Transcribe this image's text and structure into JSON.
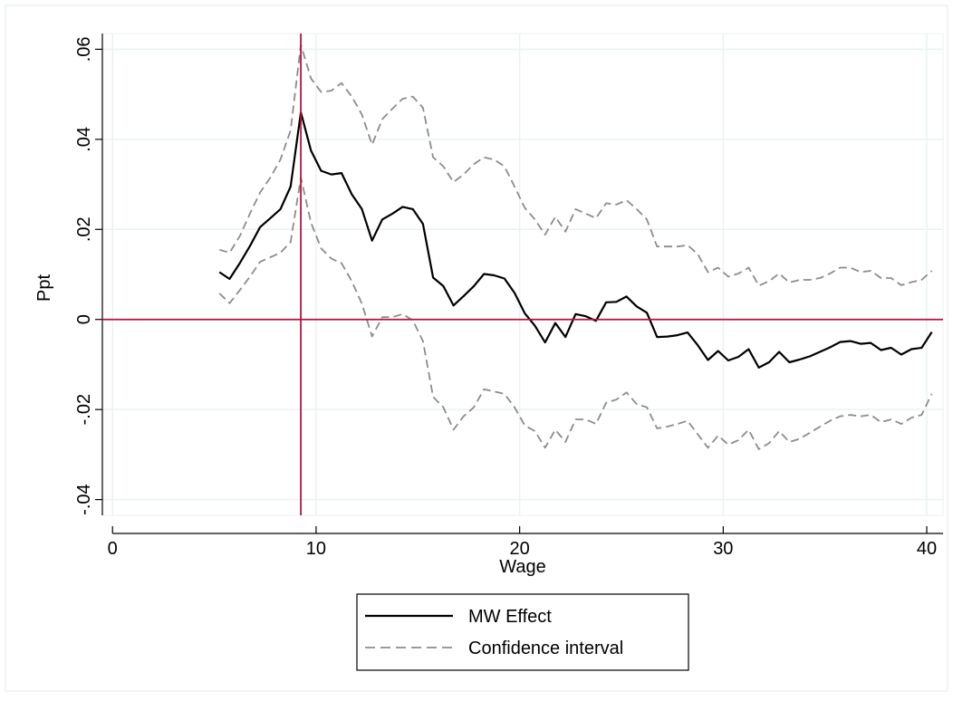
{
  "chart_data": {
    "type": "line",
    "title": "",
    "xlabel": "Wage",
    "ylabel": "Ppt",
    "xlim": [
      -0.5,
      40.8
    ],
    "ylim": [
      -0.0435,
      0.0635
    ],
    "xticks": [
      0,
      10,
      20,
      30,
      40
    ],
    "xtick_labels": [
      "0",
      "10",
      "20",
      "30",
      "40"
    ],
    "yticks": [
      -0.04,
      -0.02,
      0,
      0.02,
      0.04,
      0.06
    ],
    "ytick_labels": [
      "-.04",
      "-.02",
      "0",
      ".02",
      ".04",
      ".06"
    ],
    "grid": true,
    "legend_position": "bottom",
    "reference_lines": {
      "vertical_x": 9.25,
      "horizontal_y": 0,
      "color": "#b5123c"
    },
    "x": [
      5.25,
      5.75,
      6.25,
      6.75,
      7.25,
      7.75,
      8.25,
      8.75,
      9.25,
      9.75,
      10.25,
      10.75,
      11.25,
      11.75,
      12.25,
      12.75,
      13.25,
      13.75,
      14.25,
      14.75,
      15.25,
      15.75,
      16.25,
      16.75,
      17.25,
      17.75,
      18.25,
      18.75,
      19.25,
      19.75,
      20.25,
      20.75,
      21.25,
      21.75,
      22.25,
      22.75,
      23.25,
      23.75,
      24.25,
      24.75,
      25.25,
      25.75,
      26.25,
      26.75,
      27.25,
      27.75,
      28.25,
      28.75,
      29.25,
      29.75,
      30.25,
      30.75,
      31.25,
      31.75,
      32.25,
      32.75,
      33.25,
      33.75,
      34.25,
      34.75,
      35.25,
      35.75,
      36.25,
      36.75,
      37.25,
      37.75,
      38.25,
      38.75,
      39.25,
      39.75,
      40.25
    ],
    "series": [
      {
        "name": "MW Effect",
        "color": "#000000",
        "dash": "solid",
        "values": [
          0.0105,
          0.009,
          0.0125,
          0.0163,
          0.0205,
          0.0225,
          0.0245,
          0.0295,
          0.046,
          0.0375,
          0.033,
          0.0322,
          0.0325,
          0.0278,
          0.0245,
          0.0175,
          0.0222,
          0.0235,
          0.025,
          0.0245,
          0.0212,
          0.0093,
          0.0074,
          0.0031,
          0.0052,
          0.0074,
          0.0101,
          0.0098,
          0.0091,
          0.0059,
          0.0014,
          -0.0014,
          -0.0051,
          -0.0008,
          -0.0039,
          0.0012,
          0.0007,
          -0.0003,
          0.0038,
          0.0039,
          0.0051,
          0.0029,
          0.0015,
          -0.0039,
          -0.0038,
          -0.0035,
          -0.0029,
          -0.0057,
          -0.009,
          -0.007,
          -0.0091,
          -0.0083,
          -0.0066,
          -0.0107,
          -0.0095,
          -0.0072,
          -0.0095,
          -0.0089,
          -0.0082,
          -0.0072,
          -0.0062,
          -0.005,
          -0.0048,
          -0.0054,
          -0.0052,
          -0.0068,
          -0.0063,
          -0.0078,
          -0.0066,
          -0.0063,
          -0.0028
        ]
      },
      {
        "name": "Confidence interval",
        "color": "#8c8c8c",
        "dash": "dashed",
        "values": [
          0.0155,
          0.0148,
          0.0185,
          0.0235,
          0.0282,
          0.0315,
          0.0355,
          0.042,
          0.061,
          0.0535,
          0.0505,
          0.0508,
          0.0525,
          0.0495,
          0.0455,
          0.0388,
          0.0445,
          0.0468,
          0.049,
          0.0495,
          0.047,
          0.036,
          0.034,
          0.0305,
          0.0322,
          0.0345,
          0.036,
          0.0355,
          0.034,
          0.0295,
          0.0248,
          0.0222,
          0.0188,
          0.0228,
          0.0195,
          0.0245,
          0.0235,
          0.0225,
          0.0258,
          0.0255,
          0.0265,
          0.0245,
          0.0222,
          0.0162,
          0.0162,
          0.0162,
          0.0165,
          0.0145,
          0.0105,
          0.0115,
          0.0095,
          0.0102,
          0.0115,
          0.0075,
          0.0085,
          0.0102,
          0.0082,
          0.0088,
          0.0088,
          0.0092,
          0.0102,
          0.0115,
          0.0115,
          0.0105,
          0.0108,
          0.0092,
          0.0092,
          0.0076,
          0.0083,
          0.0088,
          0.0108
        ]
      },
      {
        "name": "Confidence interval (lower)",
        "color": "#8c8c8c",
        "dash": "dashed",
        "values": [
          0.0058,
          0.0036,
          0.0065,
          0.0095,
          0.0128,
          0.0138,
          0.0148,
          0.0172,
          0.0315,
          0.0215,
          0.0158,
          0.0135,
          0.0125,
          0.0085,
          0.0035,
          -0.0038,
          0.0005,
          0.0005,
          0.0012,
          -0.0002,
          -0.0048,
          -0.0172,
          -0.0195,
          -0.0245,
          -0.0215,
          -0.0195,
          -0.0155,
          -0.016,
          -0.0165,
          -0.0195,
          -0.0235,
          -0.0248,
          -0.0285,
          -0.0245,
          -0.0272,
          -0.0222,
          -0.0222,
          -0.0232,
          -0.0185,
          -0.0178,
          -0.0162,
          -0.0188,
          -0.0195,
          -0.0242,
          -0.0238,
          -0.0232,
          -0.0225,
          -0.0255,
          -0.0285,
          -0.0258,
          -0.0278,
          -0.0268,
          -0.0245,
          -0.0288,
          -0.0275,
          -0.0248,
          -0.0272,
          -0.0265,
          -0.0252,
          -0.0238,
          -0.0225,
          -0.0215,
          -0.0212,
          -0.0215,
          -0.0212,
          -0.0228,
          -0.0222,
          -0.0232,
          -0.0218,
          -0.0212,
          -0.0165
        ]
      }
    ],
    "legend": [
      {
        "label": "MW Effect",
        "color": "#000000",
        "dash": "solid"
      },
      {
        "label": "Confidence interval",
        "color": "#8c8c8c",
        "dash": "dashed"
      }
    ]
  }
}
